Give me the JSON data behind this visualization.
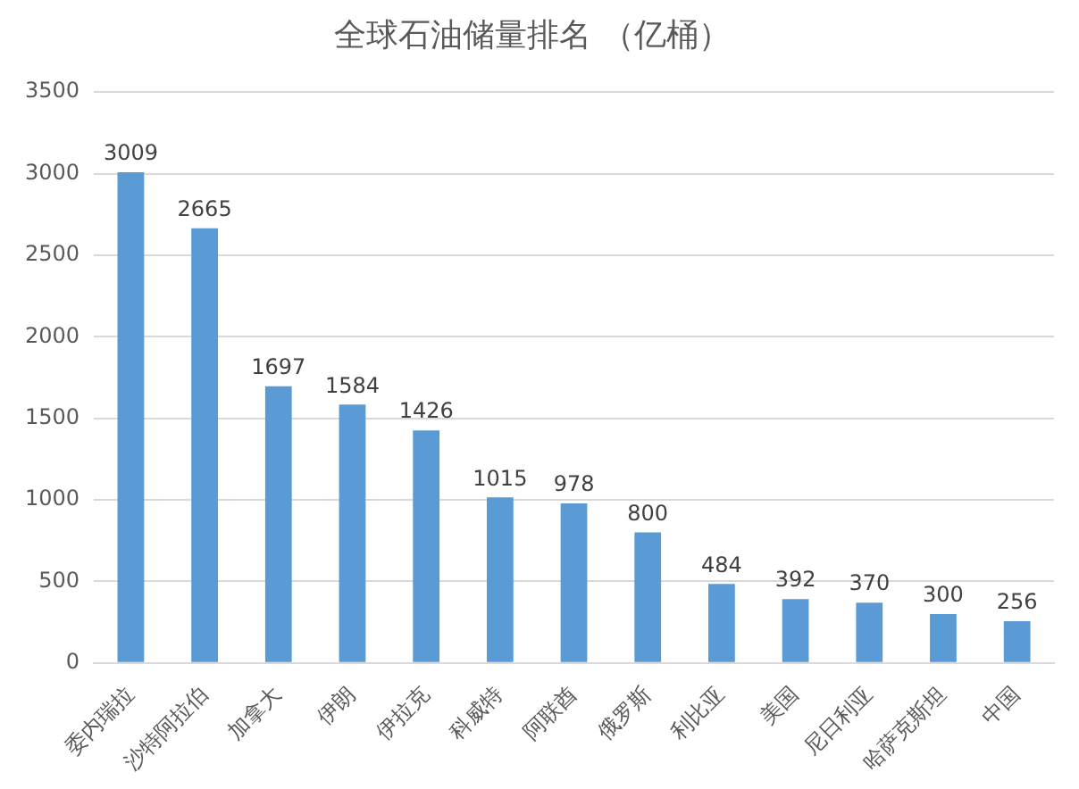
{
  "chart_data": {
    "type": "bar",
    "title": "全球石油储量排名 （亿桶）",
    "categories": [
      "委内瑞拉",
      "沙特阿拉伯",
      "加拿大",
      "伊朗",
      "伊拉克",
      "科威特",
      "阿联酋",
      "俄罗斯",
      "利比亚",
      "美国",
      "尼日利亚",
      "哈萨克斯坦",
      "中国"
    ],
    "values": [
      3009,
      2665,
      1697,
      1584,
      1426,
      1015,
      978,
      800,
      484,
      392,
      370,
      300,
      256
    ],
    "color": "#5b9bd5",
    "ylim": [
      0,
      3500
    ],
    "yticks": [
      0,
      500,
      1000,
      1500,
      2000,
      2500,
      3000,
      3500
    ],
    "grid": "y",
    "data_labels": true,
    "legend": false
  }
}
